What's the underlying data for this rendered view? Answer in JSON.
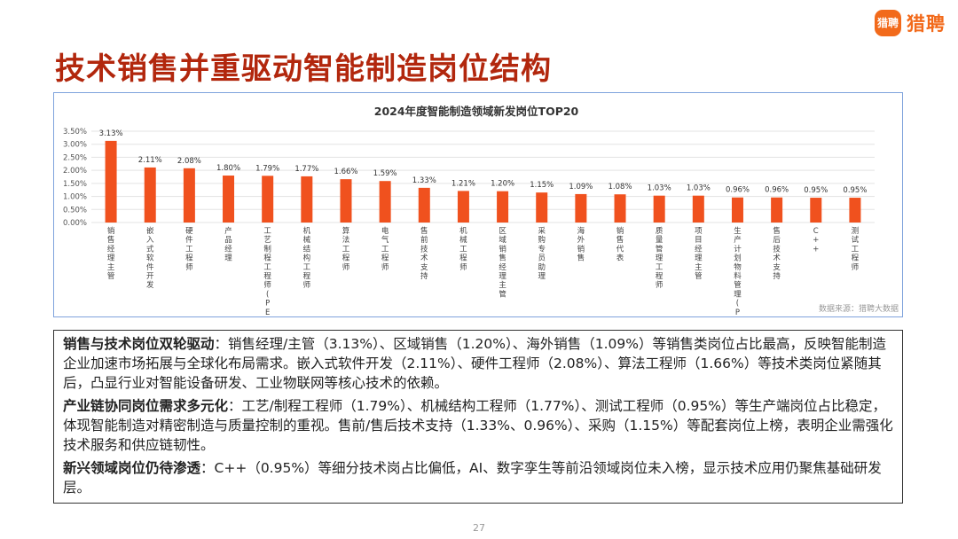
{
  "brand": {
    "badge_text": "猎聘",
    "name": "猎聘",
    "color": "#f26a1b"
  },
  "page_title": "技术销售并重驱动智能制造岗位结构",
  "chart_data": {
    "type": "bar",
    "title": "2024年度智能制造领域新发岗位TOP20",
    "categories": [
      "销售经理主管",
      "嵌入式软件开发",
      "硬件工程师",
      "产品经理",
      "工艺制程工程师(PE)",
      "机械结构工程师",
      "算法工程师",
      "电气工程师",
      "售前技术支持",
      "机械工程师",
      "区域销售经理主管",
      "采购专员助理",
      "海外销售",
      "销售代表",
      "质量管理工程师",
      "项目经理主管",
      "生产计划物料管理(PMC)",
      "售后技术支持",
      "C++",
      "测试工程师"
    ],
    "values": [
      3.13,
      2.11,
      2.08,
      1.8,
      1.79,
      1.77,
      1.66,
      1.59,
      1.33,
      1.21,
      1.2,
      1.15,
      1.09,
      1.08,
      1.03,
      1.03,
      0.96,
      0.96,
      0.95,
      0.95
    ],
    "value_labels": [
      "3.13%",
      "2.11%",
      "2.08%",
      "1.80%",
      "1.79%",
      "1.77%",
      "1.66%",
      "1.59%",
      "1.33%",
      "1.21%",
      "1.20%",
      "1.15%",
      "1.09%",
      "1.08%",
      "1.03%",
      "1.03%",
      "0.96%",
      "0.96%",
      "0.95%",
      "0.95%"
    ],
    "y_ticks": [
      "0.00%",
      "0.50%",
      "1.00%",
      "1.50%",
      "2.00%",
      "2.50%",
      "3.00%",
      "3.50%"
    ],
    "ylim": [
      0,
      3.5
    ],
    "grid": true,
    "bar_color": "#f0511e",
    "source": "数据来源：猎聘大数据"
  },
  "paragraphs": [
    {
      "heading": "销售与技术岗位双轮驱动",
      "body": "：销售经理/主管（3.13%）、区域销售（1.20%）、海外销售（1.09%）等销售类岗位占比最高，反映智能制造企业加速市场拓展与全球化布局需求。嵌入式软件开发（2.11%）、硬件工程师（2.08%）、算法工程师（1.66%）等技术类岗位紧随其后，凸显行业对智能设备研发、工业物联网等核心技术的依赖。"
    },
    {
      "heading": "产业链协同岗位需求多元化",
      "body": "：工艺/制程工程师（1.79%）、机械结构工程师（1.77%）、测试工程师（0.95%）等生产端岗位占比稳定，体现智能制造对精密制造与质量控制的重视。售前/售后技术支持（1.33%、0.96%）、采购（1.15%）等配套岗位上榜，表明企业需强化技术服务和供应链韧性。"
    },
    {
      "heading": "新兴领域岗位仍待渗透",
      "body": "：C++（0.95%）等细分技术岗占比偏低，AI、数字孪生等前沿领域岗位未入榜，显示技术应用仍聚焦基础研发层。"
    }
  ],
  "page_number": "27"
}
